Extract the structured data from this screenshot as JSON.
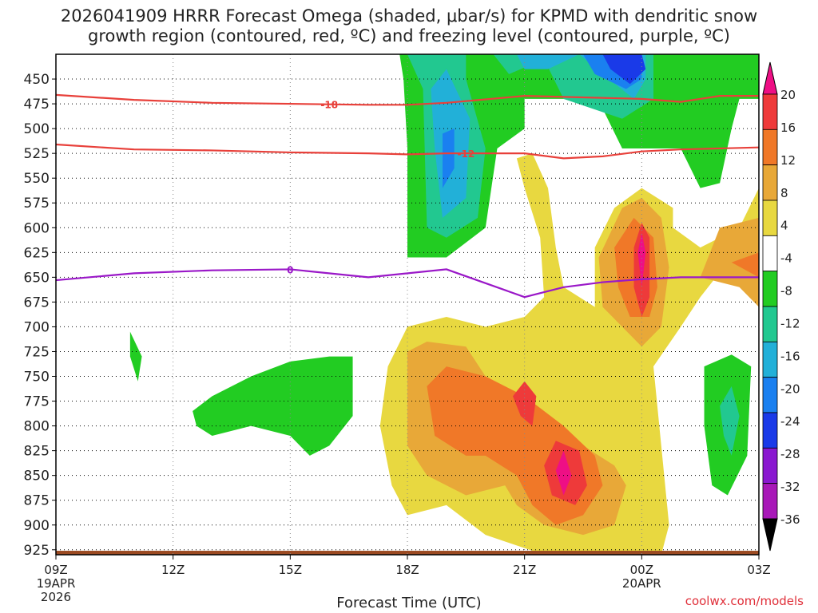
{
  "title": {
    "line1": "2026041909 HRRR Forecast Omega (shaded, μbar/s) for KPMD with dendritic snow",
    "line2": "growth region (contoured, red, ºC) and freezing level (contoured, purple, ºC)"
  },
  "watermark": "coolwx.com/models",
  "chart_data": {
    "type": "time-height",
    "title": "2026041909 HRRR Forecast Omega (shaded, μbar/s) for KPMD with dendritic snow growth region (contoured, red, ºC) and freezing level (contoured, purple, ºC)",
    "xlabel": "Forecast Time (UTC)",
    "ylabel": "",
    "x_hours": [
      0,
      18
    ],
    "x_ticks": [
      {
        "hour": 0,
        "label": "09Z",
        "sub1": "19APR",
        "sub2": "2026"
      },
      {
        "hour": 3,
        "label": "12Z",
        "sub1": "",
        "sub2": ""
      },
      {
        "hour": 6,
        "label": "15Z",
        "sub1": "",
        "sub2": ""
      },
      {
        "hour": 9,
        "label": "18Z",
        "sub1": "",
        "sub2": ""
      },
      {
        "hour": 12,
        "label": "21Z",
        "sub1": "",
        "sub2": ""
      },
      {
        "hour": 15,
        "label": "00Z",
        "sub1": "20APR",
        "sub2": ""
      },
      {
        "hour": 18,
        "label": "03Z",
        "sub1": "",
        "sub2": ""
      }
    ],
    "y_pressure_range": [
      425,
      930
    ],
    "y_ticks": [
      450,
      475,
      500,
      525,
      550,
      575,
      600,
      625,
      650,
      675,
      700,
      725,
      750,
      775,
      800,
      825,
      850,
      875,
      900,
      925
    ],
    "colorbar": {
      "labels": [
        "20",
        "16",
        "12",
        "8",
        "4",
        "-4",
        "-8",
        "-12",
        "-16",
        "-20",
        "-24",
        "-28",
        "-32",
        "-36"
      ],
      "colors": [
        "#ee0f85",
        "#ee3a3a",
        "#f07828",
        "#e8a838",
        "#e8d840",
        "#ffffff",
        "#22cc22",
        "#22c890",
        "#22b0d8",
        "#1a80f0",
        "#1a3ae8",
        "#8a18d0",
        "#a818b8",
        "#aaaaaa"
      ]
    },
    "contours": [
      {
        "name": "-18",
        "color": "#e8403a",
        "label_hour": 7.0,
        "points": [
          [
            0,
            466
          ],
          [
            2,
            471
          ],
          [
            4,
            474
          ],
          [
            6,
            475
          ],
          [
            8,
            476
          ],
          [
            9,
            476
          ],
          [
            10,
            474
          ],
          [
            12,
            467
          ],
          [
            14,
            469
          ],
          [
            15,
            470
          ],
          [
            16,
            473
          ],
          [
            17,
            467
          ],
          [
            18,
            467
          ]
        ]
      },
      {
        "name": "-12",
        "color": "#e8403a",
        "label_hour": 10.5,
        "points": [
          [
            0,
            516
          ],
          [
            2,
            521
          ],
          [
            4,
            522
          ],
          [
            6,
            524
          ],
          [
            8,
            525
          ],
          [
            9,
            526
          ],
          [
            10,
            525
          ],
          [
            12,
            525
          ],
          [
            13,
            530
          ],
          [
            14,
            528
          ],
          [
            15,
            523
          ],
          [
            16,
            521
          ],
          [
            17,
            520
          ],
          [
            18,
            519
          ]
        ]
      },
      {
        "name": "0",
        "color": "#9a18c8",
        "label_hour": 6.0,
        "points": [
          [
            0,
            653
          ],
          [
            2,
            646
          ],
          [
            4,
            643
          ],
          [
            6,
            642
          ],
          [
            8,
            650
          ],
          [
            10,
            642
          ],
          [
            12,
            670
          ],
          [
            13,
            660
          ],
          [
            14,
            655
          ],
          [
            15,
            652
          ],
          [
            16,
            650
          ],
          [
            18,
            650
          ]
        ]
      }
    ],
    "omega_fields": [
      {
        "range": "-4 to -8",
        "color": "#22cc22",
        "hour": 10.0,
        "pressure_top": 425,
        "pressure_bottom": 630
      },
      {
        "range": "-4 to -8",
        "color": "#22cc22",
        "hour": 15.0,
        "pressure_top": 425,
        "pressure_bottom": 520
      },
      {
        "range": "-8 to -12",
        "color": "#22c890",
        "hour": 10.0,
        "pressure_top": 440,
        "pressure_bottom": 600
      },
      {
        "range": "-12 to -16",
        "color": "#22b0d8",
        "hour": 10.0,
        "pressure_top": 470,
        "pressure_bottom": 590
      },
      {
        "range": "-16 to -20",
        "color": "#1a80f0",
        "hour": 10.0,
        "pressure_top": 500,
        "pressure_bottom": 560
      },
      {
        "range": "-20 to -24",
        "color": "#1a3ae8",
        "hour": 14.6,
        "pressure_top": 425,
        "pressure_bottom": 455
      },
      {
        "range": "-4 to -8",
        "color": "#22cc22",
        "hour": 4.5,
        "pressure_top": 750,
        "pressure_bottom": 840
      },
      {
        "range": "-4 to -8",
        "color": "#22cc22",
        "hour": 2.0,
        "pressure_top": 720,
        "pressure_bottom": 760
      },
      {
        "range": "-4 to -8",
        "color": "#22cc22",
        "hour": 17.0,
        "pressure_top": 740,
        "pressure_bottom": 880
      },
      {
        "range": "4 to 8",
        "color": "#e8d840",
        "hour": 12.5,
        "pressure_top": 530,
        "pressure_bottom": 930
      },
      {
        "range": "8 to 12",
        "color": "#e8a838",
        "hour": 12.5,
        "pressure_top": 700,
        "pressure_bottom": 910
      },
      {
        "range": "12 to 16",
        "color": "#f07828",
        "hour": 15.0,
        "pressure_top": 580,
        "pressure_bottom": 700
      },
      {
        "range": "16 to 20",
        "color": "#ee3a3a",
        "hour": 12.0,
        "pressure_top": 760,
        "pressure_bottom": 790
      },
      {
        "range": "> 20",
        "color": "#ee0f85",
        "hour": 13.0,
        "pressure_top": 830,
        "pressure_bottom": 870
      },
      {
        "range": "> 20",
        "color": "#ee0f85",
        "hour": 15.0,
        "pressure_top": 600,
        "pressure_bottom": 650
      }
    ]
  }
}
